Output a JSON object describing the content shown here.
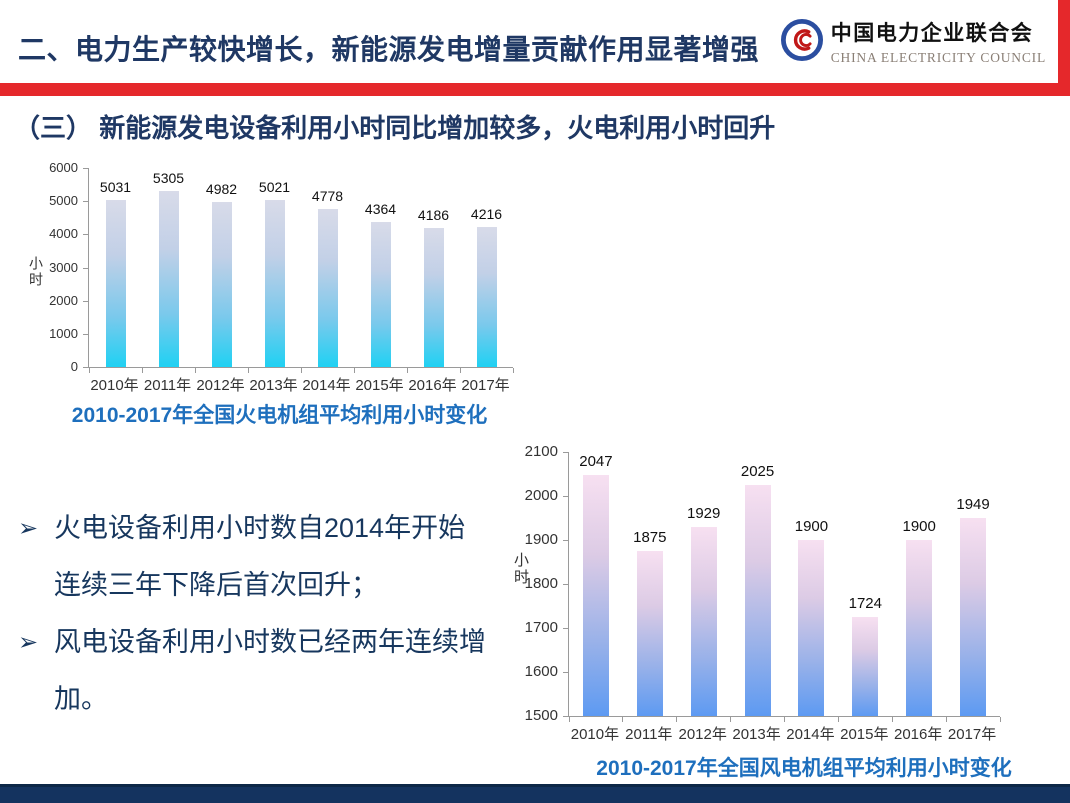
{
  "header": {
    "title": "二、电力生产较快增长，新能源发电增量贡献作用显著增强",
    "logo": {
      "name_cn": "中国电力企业联合会",
      "name_en": "CHINA ELECTRICITY COUNCIL"
    }
  },
  "subtitle": "（三） 新能源发电设备利用小时同比增加较多，火电利用小时回升",
  "bullets": {
    "marker": "➢",
    "items": [
      {
        "line1": "火电设备利用小时数自2014年开始",
        "line2": "连续三年下降后首次回升；"
      },
      {
        "line1": "风电设备利用小时数已经两年连续增",
        "line2": "加。"
      }
    ]
  },
  "chart_data": [
    {
      "type": "bar",
      "title": "2010-2017年全国火电机组平均利用小时变化",
      "ylabel": "小时",
      "xlabel": "",
      "categories": [
        "2010年",
        "2011年",
        "2012年",
        "2013年",
        "2014年",
        "2015年",
        "2016年",
        "2017年"
      ],
      "values": [
        5031,
        5305,
        4982,
        5021,
        4778,
        4364,
        4186,
        4216
      ],
      "ylim": [
        0,
        6000
      ],
      "ytick_step": 1000,
      "grid": false,
      "legend": "none",
      "bar_gradient": [
        "#d8dbe9",
        "#c2d0e7",
        "#7ac9ec",
        "#1fd1f3"
      ]
    },
    {
      "type": "bar",
      "title": "2010-2017年全国风电机组平均利用小时变化",
      "ylabel": "小时",
      "xlabel": "",
      "categories": [
        "2010年",
        "2011年",
        "2012年",
        "2013年",
        "2014年",
        "2015年",
        "2016年",
        "2017年"
      ],
      "values": [
        2047,
        1875,
        1929,
        2025,
        1900,
        1724,
        1900,
        1949
      ],
      "ylim": [
        1500,
        2100
      ],
      "ytick_step": 100,
      "grid": false,
      "legend": "none",
      "bar_gradient": [
        "#f7e0f1",
        "#dccbe5",
        "#98b1e9",
        "#5d9af2"
      ]
    }
  ],
  "colors": {
    "accent_red": "#E5282B",
    "header_navy": "#1F3864",
    "text_navy": "#17375E",
    "chart_title_blue": "#1E6FBD",
    "footer_navy": "#14335F",
    "axis_gray": "#9A9A9A"
  }
}
